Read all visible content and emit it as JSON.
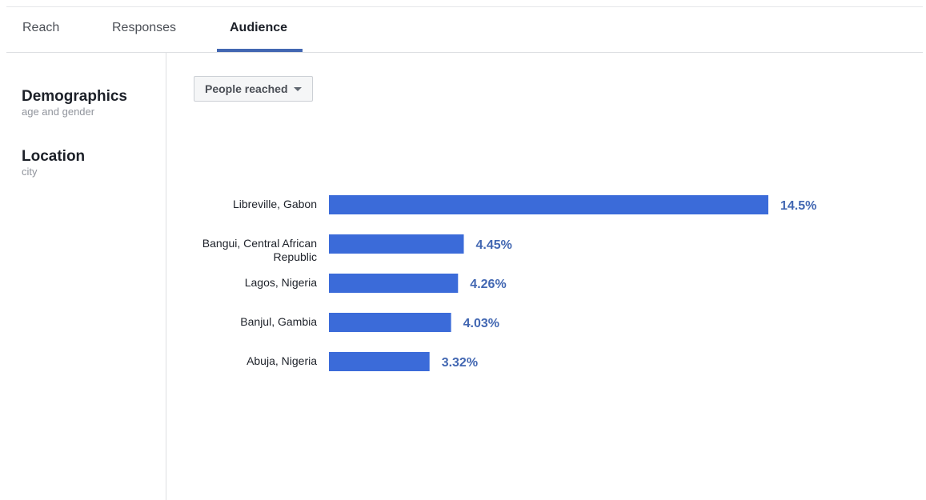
{
  "tabs": [
    {
      "label": "Reach",
      "active": false
    },
    {
      "label": "Responses",
      "active": false
    },
    {
      "label": "Audience",
      "active": true
    }
  ],
  "sidebar": {
    "items": [
      {
        "title": "Demographics",
        "subtitle": "age and gender"
      },
      {
        "title": "Location",
        "subtitle": "city"
      }
    ]
  },
  "dropdown": {
    "label": "People reached"
  },
  "colors": {
    "accent": "#4267b2",
    "bar": "#3b6bd9"
  },
  "chart_data": {
    "type": "bar",
    "orientation": "horizontal",
    "unit": "%",
    "categories": [
      [
        "Libreville, Gabon"
      ],
      [
        "Bangui, Central African",
        "Republic"
      ],
      [
        "Lagos, Nigeria"
      ],
      [
        "Banjul, Gambia"
      ],
      [
        "Abuja, Nigeria"
      ]
    ],
    "values": [
      14.5,
      4.45,
      4.26,
      4.03,
      3.32
    ],
    "value_labels": [
      "14.5%",
      "4.45%",
      "4.26%",
      "4.03%",
      "3.32%"
    ],
    "xlim": [
      0,
      14.5
    ],
    "grid": false
  }
}
